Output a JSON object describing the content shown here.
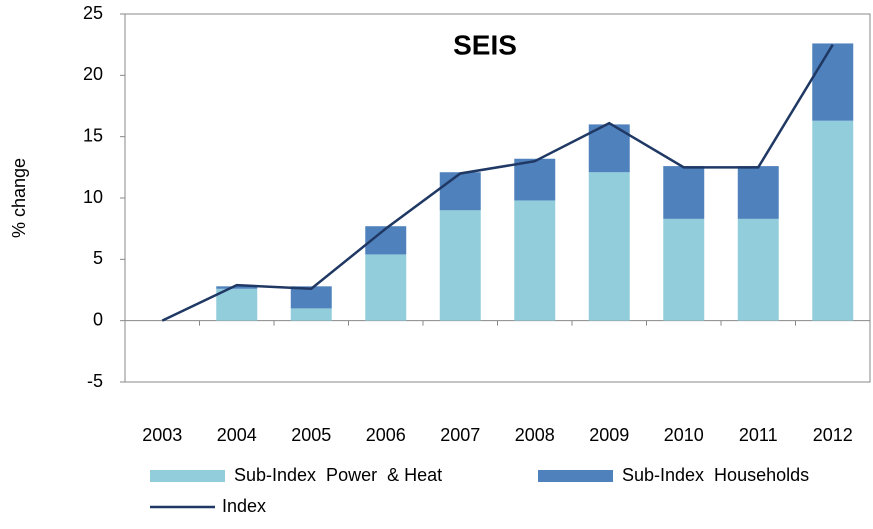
{
  "chart_data": {
    "type": "bar",
    "title": "SEIS",
    "y_label": "% change",
    "categories": [
      "2003",
      "2004",
      "2005",
      "2006",
      "2007",
      "2008",
      "2009",
      "2010",
      "2011",
      "2012"
    ],
    "stacked": true,
    "series": [
      {
        "name": "Sub-Index  Power  & Heat",
        "color": "#92cddc",
        "values": [
          0,
          2.6,
          1.0,
          5.4,
          9.0,
          9.8,
          12.1,
          8.3,
          8.3,
          16.3
        ]
      },
      {
        "name": "Sub-Index  Households",
        "color": "#4f81bd",
        "values": [
          0,
          0.2,
          1.8,
          2.3,
          3.1,
          3.4,
          3.9,
          4.3,
          4.3,
          6.3
        ]
      },
      {
        "name": "Index",
        "type": "line",
        "color": "#1f3864",
        "values": [
          0,
          2.9,
          2.6,
          7.5,
          12.0,
          13.0,
          16.1,
          12.5,
          12.5,
          22.5
        ]
      }
    ],
    "ylim": [
      -5,
      25
    ],
    "yticks": [
      -5,
      0,
      5,
      10,
      15,
      20,
      25
    ],
    "grid": false
  }
}
